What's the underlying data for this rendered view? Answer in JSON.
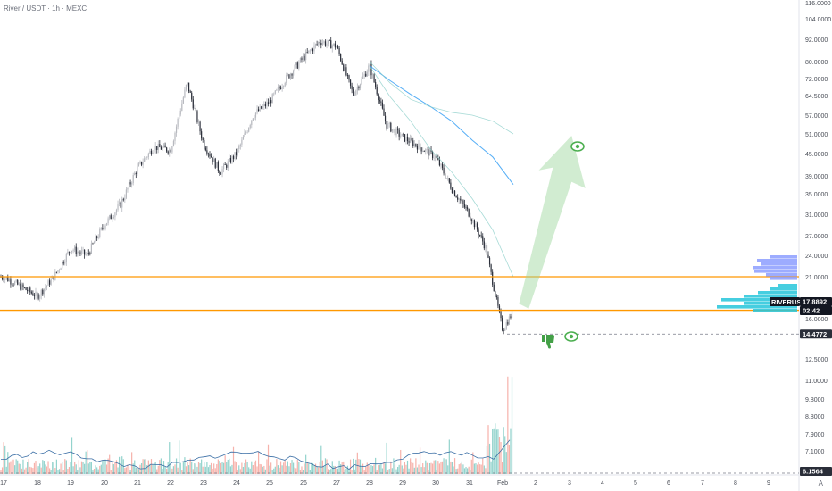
{
  "header": {
    "title": "River / USDT · 1h · MEXC"
  },
  "price_axis": {
    "ticks": [
      "116.0000",
      "104.0000",
      "92.0000",
      "80.0000",
      "72.0000",
      "64.5000",
      "57.0000",
      "51.0000",
      "45.0000",
      "39.0000",
      "35.0000",
      "31.0000",
      "27.0000",
      "24.0000",
      "21.0000",
      "16.0000",
      "12.5000",
      "11.0000",
      "9.8000",
      "8.8000",
      "7.9000",
      "7.1000"
    ]
  },
  "time_axis": {
    "labels": [
      "17",
      "18",
      "19",
      "20",
      "21",
      "22",
      "23",
      "24",
      "25",
      "26",
      "27",
      "28",
      "29",
      "30",
      "31",
      "Feb",
      "2",
      "3",
      "4",
      "5",
      "6",
      "7",
      "8",
      "9"
    ]
  },
  "tags": {
    "symbol": "RIVERUSDT",
    "last_price": "17.8892",
    "countdown": "02:42",
    "low_level": "14.4772",
    "bottom_level": "6.1564"
  },
  "axis_button": "A",
  "colors": {
    "candle_up": "#b7b9bf",
    "candle_down": "#2a2e39",
    "horizontal_line": "#ff9800",
    "ema_fast": "#42a5f5",
    "ema_slow": "#80cbc4",
    "volume_up": "#80cbc4",
    "volume_down": "#f4a49c",
    "arrow": "#9ad69a",
    "profile": "#26c6da",
    "profile_upper": "#8c9eff"
  },
  "chart_data": {
    "type": "candlestick",
    "title": "River / USDT · 1h · MEXC",
    "scale": "log",
    "x_range": [
      "17",
      "9"
    ],
    "ylim": [
      6.1564,
      116.0
    ],
    "horizontal_lines": [
      21.0,
      16.9
    ],
    "last_price": 17.8892,
    "low_marker": 14.4772,
    "close_path": [
      [
        "17",
        21.0
      ],
      [
        "18",
        18.5
      ],
      [
        "18",
        21.0
      ],
      [
        "19",
        25.0
      ],
      [
        "19",
        24.0
      ],
      [
        "20",
        29.0
      ],
      [
        "20",
        33.0
      ],
      [
        "21",
        41.0
      ],
      [
        "21",
        47.0
      ],
      [
        "22",
        46.0
      ],
      [
        "22",
        70.0
      ],
      [
        "23",
        48.0
      ],
      [
        "23",
        40.0
      ],
      [
        "24",
        45.0
      ],
      [
        "24",
        57.0
      ],
      [
        "25",
        62.0
      ],
      [
        "25",
        72.0
      ],
      [
        "26",
        82.0
      ],
      [
        "26",
        91.0
      ],
      [
        "27",
        88.0
      ],
      [
        "27",
        65.0
      ],
      [
        "28",
        78.0
      ],
      [
        "28",
        54.0
      ],
      [
        "29",
        50.0
      ],
      [
        "29",
        47.0
      ],
      [
        "30",
        44.0
      ],
      [
        "30",
        36.0
      ],
      [
        "31",
        31.0
      ],
      [
        "31",
        25.0
      ],
      [
        "Feb",
        14.9
      ],
      [
        "Feb",
        17.89
      ]
    ],
    "moving_averages": [
      {
        "values_from": "28",
        "values": [
          78.0,
          71.0,
          65.0,
          60.0,
          55.0,
          49.0,
          44.0,
          37.0
        ]
      },
      {
        "values_from": "28",
        "values": [
          80.0,
          70.0,
          63.0,
          60.0,
          58.0,
          57.0,
          55.0,
          51.0
        ]
      },
      {
        "values_from": "28",
        "values": [
          78.0,
          64.0,
          55.0,
          46.0,
          40.0,
          34.0,
          28.0,
          21.0
        ]
      }
    ],
    "projection": {
      "from": [
        "Feb",
        17.9
      ],
      "to": [
        "3",
        47.0
      ]
    },
    "volume_axis_bottom": 6.1564
  }
}
